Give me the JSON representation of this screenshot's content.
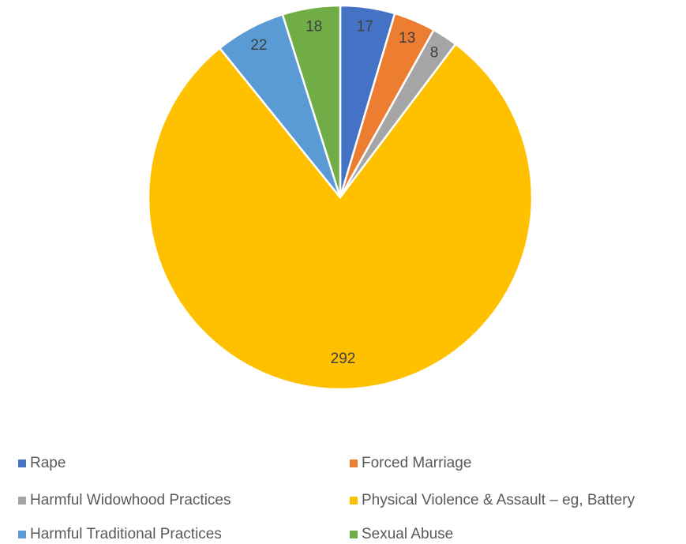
{
  "chart_data": {
    "type": "pie",
    "categories": [
      "Rape",
      "Forced Marriage",
      "Harmful Widowhood Practices",
      "Physical Violence & Assault – eg, Battery",
      "Harmful Traditional Practices",
      "Sexual Abuse"
    ],
    "values": [
      17,
      13,
      8,
      292,
      22,
      18
    ],
    "colors": [
      "#4472c4",
      "#ed7d31",
      "#a5a5a5",
      "#ffc000",
      "#5b9bd5",
      "#70ad47"
    ],
    "legend": "bottom"
  }
}
